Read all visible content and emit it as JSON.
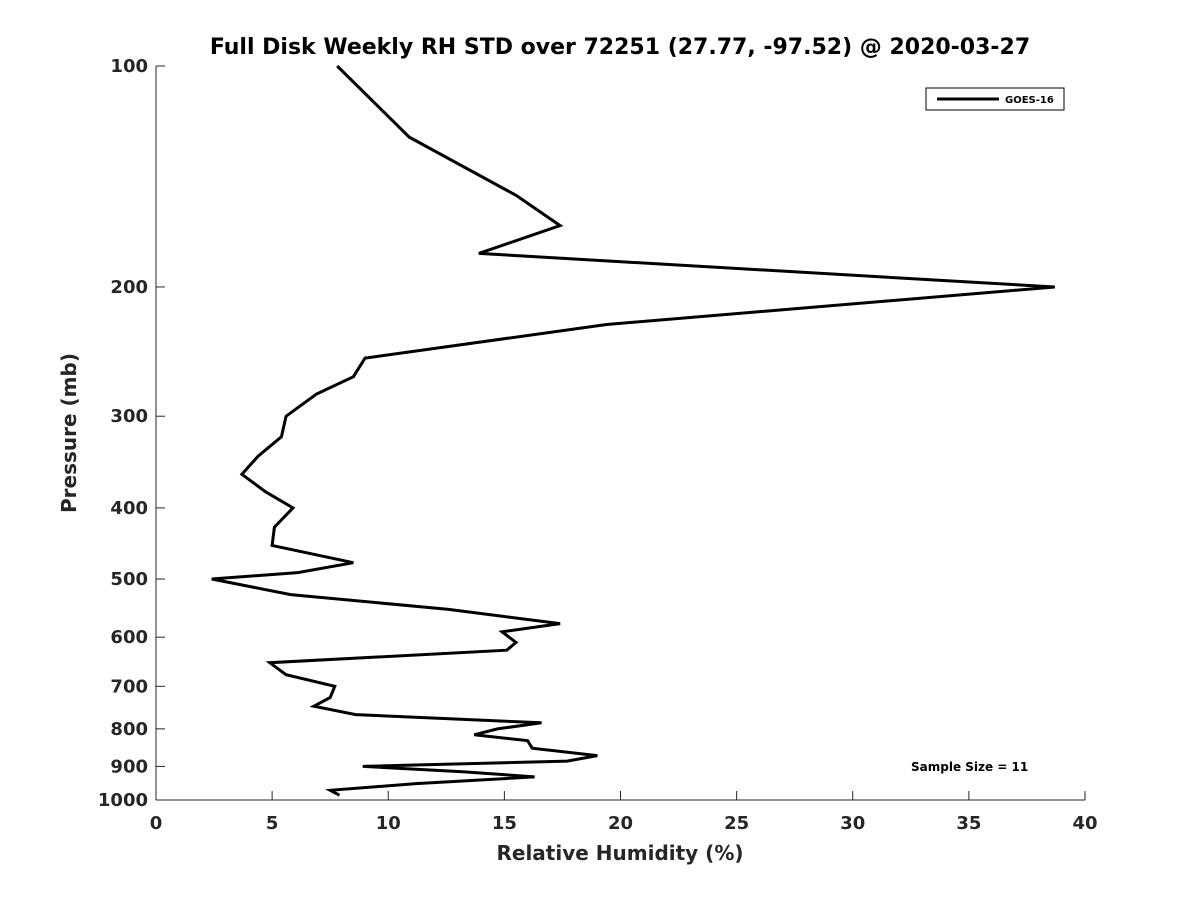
{
  "chart_data": {
    "type": "line",
    "title": "Full Disk Weekly RH STD over 72251 (27.77, -97.52) @ 2020-03-27",
    "xlabel": "Relative Humidity (%)",
    "ylabel": "Pressure (mb)",
    "xlim": [
      0,
      40
    ],
    "ylim": [
      1000,
      100
    ],
    "y_scale": "log",
    "y_reversed": true,
    "grid": false,
    "x_ticks": [
      0,
      5,
      10,
      15,
      20,
      25,
      30,
      35,
      40
    ],
    "x_tick_labels": [
      "0",
      "5",
      "10",
      "15",
      "20",
      "25",
      "30",
      "35",
      "40"
    ],
    "y_ticks": [
      100,
      200,
      300,
      400,
      500,
      600,
      700,
      800,
      900,
      1000
    ],
    "y_tick_labels": [
      "100",
      "200",
      "300",
      "400",
      "500",
      "600",
      "700",
      "800",
      "900",
      "1000"
    ],
    "legend": {
      "position": "top-right",
      "entries": [
        "GOES-16"
      ]
    },
    "annotation": "Sample Size = 11",
    "series": [
      {
        "name": "GOES-16",
        "color": "#000000",
        "points": [
          [
            7.8,
            100
          ],
          [
            10.9,
            125
          ],
          [
            15.5,
            150
          ],
          [
            17.4,
            165
          ],
          [
            13.9,
            180
          ],
          [
            38.7,
            200
          ],
          [
            19.4,
            225
          ],
          [
            9.0,
            250
          ],
          [
            8.5,
            265
          ],
          [
            6.9,
            280
          ],
          [
            5.6,
            300
          ],
          [
            5.4,
            320
          ],
          [
            4.4,
            340
          ],
          [
            3.7,
            360
          ],
          [
            4.7,
            380
          ],
          [
            5.9,
            400
          ],
          [
            5.1,
            425
          ],
          [
            5.0,
            450
          ],
          [
            8.5,
            475
          ],
          [
            6.1,
            490
          ],
          [
            2.4,
            500
          ],
          [
            5.8,
            525
          ],
          [
            12.6,
            550
          ],
          [
            17.4,
            575
          ],
          [
            14.9,
            590
          ],
          [
            15.5,
            610
          ],
          [
            15.1,
            625
          ],
          [
            4.9,
            650
          ],
          [
            5.6,
            675
          ],
          [
            7.7,
            700
          ],
          [
            7.5,
            725
          ],
          [
            6.8,
            745
          ],
          [
            8.6,
            765
          ],
          [
            16.6,
            785
          ],
          [
            14.7,
            800
          ],
          [
            13.7,
            815
          ],
          [
            16.0,
            830
          ],
          [
            16.2,
            850
          ],
          [
            19.0,
            870
          ],
          [
            17.7,
            885
          ],
          [
            8.9,
            900
          ],
          [
            13.2,
            915
          ],
          [
            16.3,
            930
          ],
          [
            11.2,
            950
          ],
          [
            7.5,
            970
          ],
          [
            7.9,
            985
          ]
        ]
      }
    ]
  }
}
